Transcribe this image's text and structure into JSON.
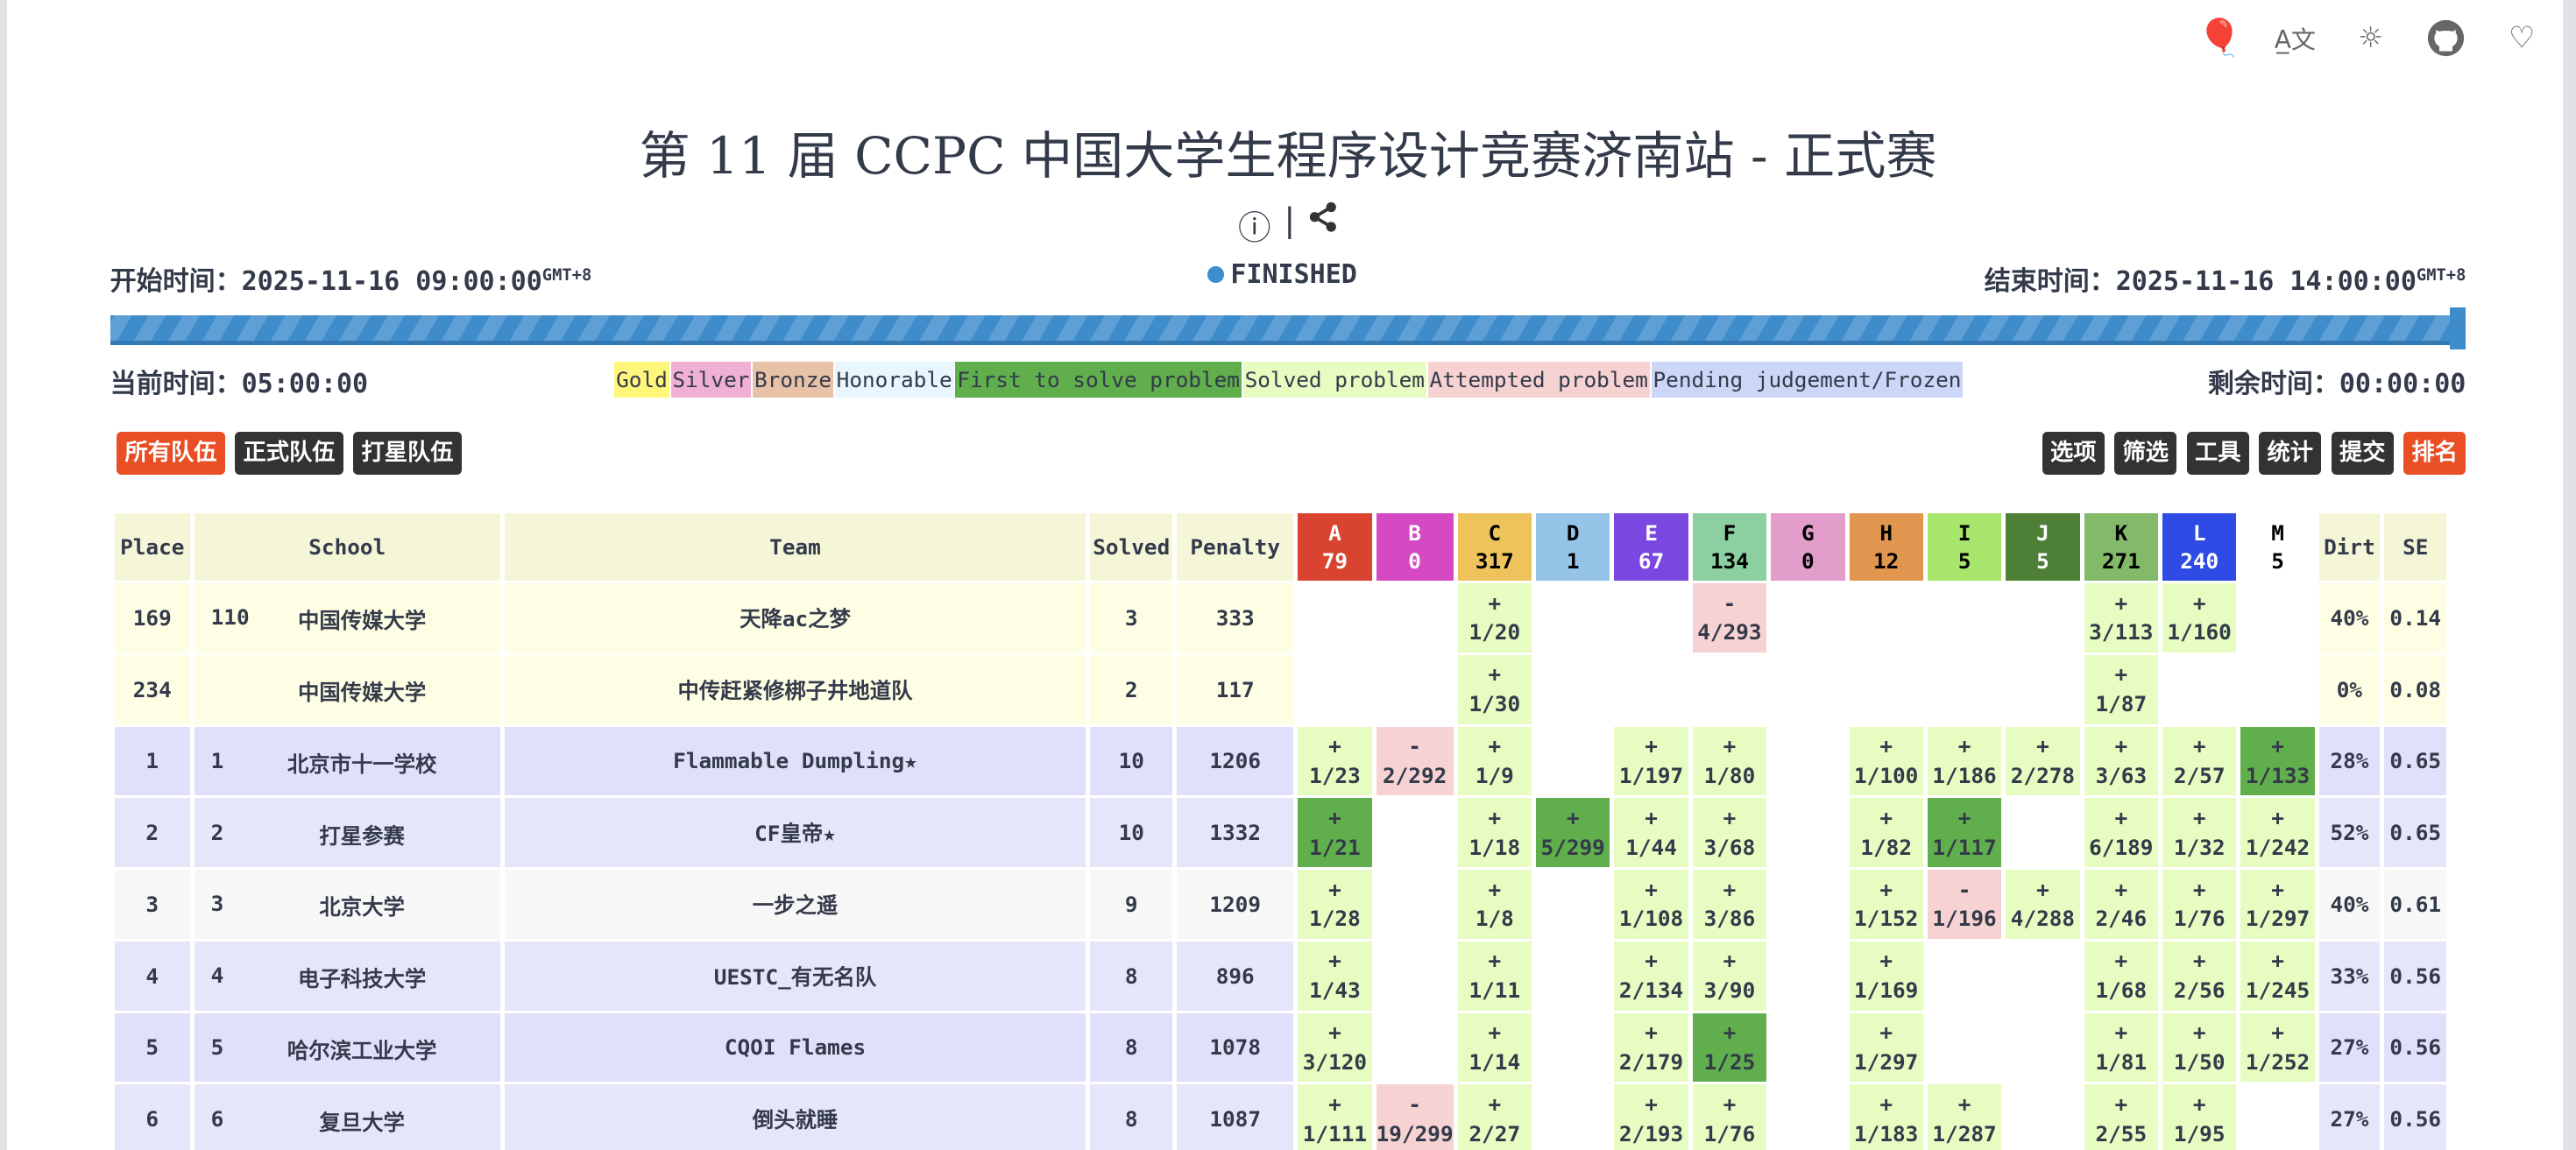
{
  "top_icons": [
    "balloon-icon",
    "translate-icon",
    "sun-icon",
    "github-icon",
    "heart-icon"
  ],
  "title": "第 11 届 CCPC 中国大学生程序设计竞赛济南站 - 正式赛",
  "start": {
    "label": "开始时间：",
    "value": "2025-11-16 09:00:00",
    "tz": "GMT+8"
  },
  "end": {
    "label": "结束时间：",
    "value": "2025-11-16 14:00:00",
    "tz": "GMT+8"
  },
  "status": "FINISHED",
  "progress": 1.0,
  "current": {
    "label": "当前时间：",
    "value": "05:00:00"
  },
  "remaining": {
    "label": "剩余时间：",
    "value": "00:00:00"
  },
  "legend": [
    {
      "label": "Gold",
      "color": "#fff67c"
    },
    {
      "label": "Silver",
      "color": "#f0b0d4"
    },
    {
      "label": "Bronze",
      "color": "#e8c2a6"
    },
    {
      "label": "Honorable",
      "color": "#e8f6fe"
    },
    {
      "label": "First to solve problem",
      "color": "#60ae4c"
    },
    {
      "label": "Solved problem",
      "color": "#e6fcc0"
    },
    {
      "label": "Attempted problem",
      "color": "#f6d2d2"
    },
    {
      "label": "Pending judgement/Frozen",
      "color": "#ccd6f6"
    }
  ],
  "left_buttons": [
    "所有队伍",
    "正式队伍",
    "打星队伍"
  ],
  "right_buttons": [
    "选项",
    "筛选",
    "工具",
    "统计",
    "提交",
    "排名"
  ],
  "headers": {
    "place": "Place",
    "school": "School",
    "team": "Team",
    "solved": "Solved",
    "penalty": "Penalty",
    "dirt": "Dirt",
    "se": "SE"
  },
  "problems": [
    {
      "id": "A",
      "count": "79",
      "bg": "#d94431",
      "fg": "#fff"
    },
    {
      "id": "B",
      "count": "0",
      "bg": "#d54ac3",
      "fg": "#fff"
    },
    {
      "id": "C",
      "count": "317",
      "bg": "#eec35c",
      "fg": "#000"
    },
    {
      "id": "D",
      "count": "1",
      "bg": "#94c5e8",
      "fg": "#000"
    },
    {
      "id": "E",
      "count": "67",
      "bg": "#7a47e0",
      "fg": "#fff"
    },
    {
      "id": "F",
      "count": "134",
      "bg": "#8ccfa0",
      "fg": "#000"
    },
    {
      "id": "G",
      "count": "0",
      "bg": "#e39dcb",
      "fg": "#000"
    },
    {
      "id": "H",
      "count": "12",
      "bg": "#e0964f",
      "fg": "#000"
    },
    {
      "id": "I",
      "count": "5",
      "bg": "#a8e56c",
      "fg": "#000"
    },
    {
      "id": "J",
      "count": "5",
      "bg": "#4d8036",
      "fg": "#fff"
    },
    {
      "id": "K",
      "count": "271",
      "bg": "#82ba6a",
      "fg": "#000"
    },
    {
      "id": "L",
      "count": "240",
      "bg": "#2f4be6",
      "fg": "#fff"
    },
    {
      "id": "M",
      "count": "5",
      "bg": "#ffffff",
      "fg": "#000"
    }
  ],
  "rows": [
    {
      "place": "169",
      "rank": "110",
      "school": "中国传媒大学",
      "team": "天降ac之梦",
      "solved": "3",
      "penalty": "333",
      "dirt": "40%",
      "se": "0.14",
      "bg": "#fefee4",
      "cells": [
        null,
        null,
        [
          "+",
          "1/20",
          "s"
        ],
        null,
        null,
        [
          "-",
          "4/293",
          "a"
        ],
        null,
        null,
        null,
        null,
        [
          "+",
          "3/113",
          "s"
        ],
        [
          "+",
          "1/160",
          "s"
        ],
        null
      ]
    },
    {
      "place": "234",
      "rank": "",
      "school": "中国传媒大学",
      "team": "中传赶紧修梆子井地道队",
      "solved": "2",
      "penalty": "117",
      "dirt": "0%",
      "se": "0.08",
      "bg": "#fefee4",
      "cells": [
        null,
        null,
        [
          "+",
          "1/30",
          "s"
        ],
        null,
        null,
        null,
        null,
        null,
        null,
        null,
        [
          "+",
          "1/87",
          "s"
        ],
        null,
        null
      ]
    },
    {
      "place": "1",
      "rank": "1",
      "school": "北京市十一学校",
      "team": "Flammable Dumpling★",
      "solved": "10",
      "penalty": "1206",
      "dirt": "28%",
      "se": "0.65",
      "bg": "#e0e0fa",
      "cells": [
        [
          "+",
          "1/23",
          "s"
        ],
        [
          "-",
          "2/292",
          "a"
        ],
        [
          "+",
          "1/9",
          "s"
        ],
        null,
        [
          "+",
          "1/197",
          "s"
        ],
        [
          "+",
          "1/80",
          "s"
        ],
        null,
        [
          "+",
          "1/100",
          "s"
        ],
        [
          "+",
          "1/186",
          "s"
        ],
        [
          "+",
          "2/278",
          "s"
        ],
        [
          "+",
          "3/63",
          "s"
        ],
        [
          "+",
          "2/57",
          "s"
        ],
        [
          "+",
          "1/133",
          "f"
        ]
      ]
    },
    {
      "place": "2",
      "rank": "2",
      "school": "打星参赛",
      "team": "CF皇帝★",
      "solved": "10",
      "penalty": "1332",
      "dirt": "52%",
      "se": "0.65",
      "bg": "#e6e6fa",
      "cells": [
        [
          "+",
          "1/21",
          "f"
        ],
        null,
        [
          "+",
          "1/18",
          "s"
        ],
        [
          "+",
          "5/299",
          "f"
        ],
        [
          "+",
          "1/44",
          "s"
        ],
        [
          "+",
          "3/68",
          "s"
        ],
        null,
        [
          "+",
          "1/82",
          "s"
        ],
        [
          "+",
          "1/117",
          "f"
        ],
        null,
        [
          "+",
          "6/189",
          "s"
        ],
        [
          "+",
          "1/32",
          "s"
        ],
        [
          "+",
          "1/242",
          "s"
        ]
      ]
    },
    {
      "place": "3",
      "rank": "3",
      "school": "北京大学",
      "team": "一步之遥",
      "solved": "9",
      "penalty": "1209",
      "dirt": "40%",
      "se": "0.61",
      "bg": "#f7f7f7",
      "cells": [
        [
          "+",
          "1/28",
          "s"
        ],
        null,
        [
          "+",
          "1/8",
          "s"
        ],
        null,
        [
          "+",
          "1/108",
          "s"
        ],
        [
          "+",
          "3/86",
          "s"
        ],
        null,
        [
          "+",
          "1/152",
          "s"
        ],
        [
          "-",
          "1/196",
          "a"
        ],
        [
          "+",
          "4/288",
          "s"
        ],
        [
          "+",
          "2/46",
          "s"
        ],
        [
          "+",
          "1/76",
          "s"
        ],
        [
          "+",
          "1/297",
          "s"
        ]
      ]
    },
    {
      "place": "4",
      "rank": "4",
      "school": "电子科技大学",
      "team": "UESTC_有无名队",
      "solved": "8",
      "penalty": "896",
      "dirt": "33%",
      "se": "0.56",
      "bg": "#e6e6fa",
      "cells": [
        [
          "+",
          "1/43",
          "s"
        ],
        null,
        [
          "+",
          "1/11",
          "s"
        ],
        null,
        [
          "+",
          "2/134",
          "s"
        ],
        [
          "+",
          "3/90",
          "s"
        ],
        null,
        [
          "+",
          "1/169",
          "s"
        ],
        null,
        null,
        [
          "+",
          "1/68",
          "s"
        ],
        [
          "+",
          "2/56",
          "s"
        ],
        [
          "+",
          "1/245",
          "s"
        ]
      ]
    },
    {
      "place": "5",
      "rank": "5",
      "school": "哈尔滨工业大学",
      "team": "CQOI Flames",
      "solved": "8",
      "penalty": "1078",
      "dirt": "27%",
      "se": "0.56",
      "bg": "#e0e0fa",
      "cells": [
        [
          "+",
          "3/120",
          "s"
        ],
        null,
        [
          "+",
          "1/14",
          "s"
        ],
        null,
        [
          "+",
          "2/179",
          "s"
        ],
        [
          "+",
          "1/25",
          "f"
        ],
        null,
        [
          "+",
          "1/297",
          "s"
        ],
        null,
        null,
        [
          "+",
          "1/81",
          "s"
        ],
        [
          "+",
          "1/50",
          "s"
        ],
        [
          "+",
          "1/252",
          "s"
        ]
      ]
    },
    {
      "place": "6",
      "rank": "6",
      "school": "复旦大学",
      "team": "倒头就睡",
      "solved": "8",
      "penalty": "1087",
      "dirt": "27%",
      "se": "0.56",
      "bg": "#e6e6fa",
      "cells": [
        [
          "+",
          "1/111",
          "s"
        ],
        [
          "-",
          "19/299",
          "a"
        ],
        [
          "+",
          "2/27",
          "s"
        ],
        null,
        [
          "+",
          "2/193",
          "s"
        ],
        [
          "+",
          "1/76",
          "s"
        ],
        null,
        [
          "+",
          "1/183",
          "s"
        ],
        [
          "+",
          "1/287",
          "s"
        ],
        null,
        [
          "+",
          "2/55",
          "s"
        ],
        [
          "+",
          "1/95",
          "s"
        ],
        null
      ]
    }
  ],
  "cell_colors": {
    "s": "#e6fcc0",
    "f": "#60ae4c",
    "a": "#f6d2d2"
  }
}
